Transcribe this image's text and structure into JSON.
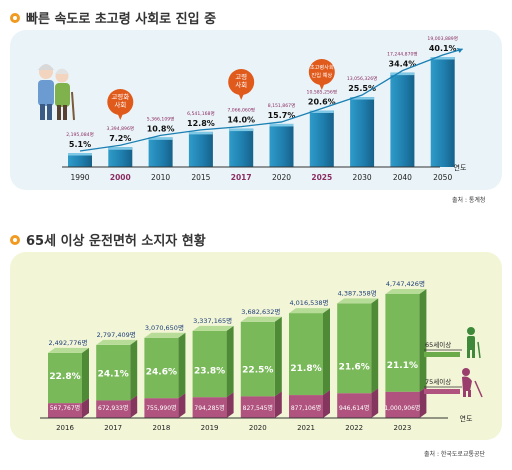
{
  "chart1": {
    "title": "빠른 속도로 초고령 사회로 진입 중",
    "source": "출처 : 통계청",
    "xlabel": "연도",
    "accent": "#f19a1f",
    "bar_color": "#2486b4",
    "highlight_color": "#8b2c62",
    "callout_color": "#e05a1b",
    "callouts": [
      {
        "year": "2000",
        "label": "고령화\n사회"
      },
      {
        "year": "2017",
        "label": "고령\n사회"
      },
      {
        "year": "2025",
        "label": "초고령사회\n진입 예상"
      }
    ],
    "chart_data": {
      "type": "bar",
      "categories": [
        "1990",
        "2000",
        "2010",
        "2015",
        "2017",
        "2020",
        "2025",
        "2030",
        "2040",
        "2050"
      ],
      "highlight": [
        "2000",
        "2017",
        "2025"
      ],
      "values": [
        5.1,
        7.2,
        10.8,
        12.8,
        14.0,
        15.7,
        20.6,
        25.5,
        34.4,
        40.1
      ],
      "value_labels": [
        "5.1%",
        "7.2%",
        "10.8%",
        "12.8%",
        "14.0%",
        "15.7%",
        "20.6%",
        "25.5%",
        "34.4%",
        "40.1%"
      ],
      "population_labels": [
        "2,195,084명",
        "3,394,896명",
        "5,366,109명",
        "6,541,168명",
        "7,066,060명",
        "8,151,867명",
        "10,585,256명",
        "13,056,326명",
        "17,244,870명",
        "19,003,889명"
      ],
      "xlabel": "연도",
      "ylabel": ""
    }
  },
  "chart2": {
    "title": "65세 이상 운전면허 소지자 현황",
    "source": "출처 : 한국도로교통공단",
    "xlabel": "연도",
    "legend": [
      {
        "name": "65세이상",
        "color": "#6aaa4a"
      },
      {
        "name": "75세이상",
        "color": "#b0547f"
      }
    ],
    "chart_data": {
      "type": "bar",
      "categories": [
        "2016",
        "2017",
        "2018",
        "2019",
        "2020",
        "2021",
        "2022",
        "2023"
      ],
      "series": [
        {
          "name": "65세이상",
          "values": [
            2492776,
            2797409,
            3070650,
            3337165,
            3682632,
            4016538,
            4387358,
            4747426
          ],
          "labels": [
            "2,492,776명",
            "2,797,409명",
            "3,070,650명",
            "3,337,165명",
            "3,682,632명",
            "4,016,538명",
            "4,387,358명",
            "4,747,426명"
          ],
          "percent_labels": [
            "22.8%",
            "24.1%",
            "24.6%",
            "23.8%",
            "22.5%",
            "21.8%",
            "21.6%",
            "21.1%"
          ]
        },
        {
          "name": "75세이상",
          "values": [
            567767,
            672933,
            755990,
            794285,
            827545,
            877106,
            946614,
            1000906
          ],
          "labels": [
            "567,767명",
            "672,933명",
            "755,990명",
            "794,285명",
            "827,545명",
            "877,106명",
            "946,614명",
            "1,000,906명"
          ]
        }
      ],
      "xlabel": "연도",
      "ylabel": ""
    }
  }
}
